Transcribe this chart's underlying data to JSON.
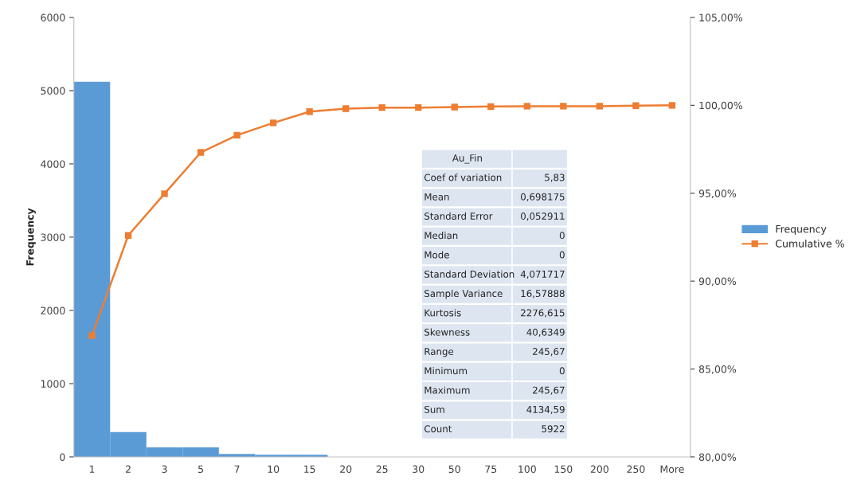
{
  "chart_data": {
    "type": "bar",
    "categories": [
      "1",
      "2",
      "3",
      "5",
      "7",
      "10",
      "15",
      "20",
      "25",
      "30",
      "50",
      "75",
      "100",
      "150",
      "200",
      "250",
      "More"
    ],
    "ylabel": "Frequency",
    "ylim": [
      0,
      6000
    ],
    "yticks": [
      0,
      1000,
      2000,
      3000,
      4000,
      5000,
      6000
    ],
    "y2lim": [
      80,
      105
    ],
    "y2ticks": [
      {
        "value": 80,
        "label": "80,00%"
      },
      {
        "value": 85,
        "label": "85,00%"
      },
      {
        "value": 90,
        "label": "90,00%"
      },
      {
        "value": 95,
        "label": "95,00%"
      },
      {
        "value": 100,
        "label": "100,00%"
      },
      {
        "value": 105,
        "label": "105,00%"
      }
    ],
    "series": [
      {
        "name": "Frequency",
        "color": "#5b9bd5",
        "values": [
          5120,
          340,
          130,
          130,
          40,
          30,
          30,
          0,
          0,
          0,
          0,
          0,
          0,
          0,
          0,
          0,
          0
        ]
      },
      {
        "name": "Cumulative %",
        "type": "line",
        "axis": "y2",
        "color": "#ed7d31",
        "marker": "square",
        "values": [
          86.9,
          92.6,
          94.97,
          97.32,
          98.3,
          99.0,
          99.64,
          99.81,
          99.87,
          99.87,
          99.9,
          99.93,
          99.95,
          99.95,
          99.95,
          99.98,
          100
        ]
      }
    ],
    "annotations": [
      "Au_Fin",
      "Coef of variation",
      "5,83",
      "Mean",
      "0,698175",
      "Standard Error",
      "0,052911",
      "Median",
      "0",
      "Mode",
      "0",
      "Standard Deviation",
      "4,071717",
      "Sample Variance",
      "16,57888",
      "Kurtosis",
      "2276,615",
      "Skewness",
      "40,6349",
      "Range",
      "245,67",
      "Minimum",
      "0",
      "Maximum",
      "245,67",
      "Sum",
      "4134,59",
      "Count",
      "5922"
    ],
    "grid": false,
    "legend": "right"
  }
}
